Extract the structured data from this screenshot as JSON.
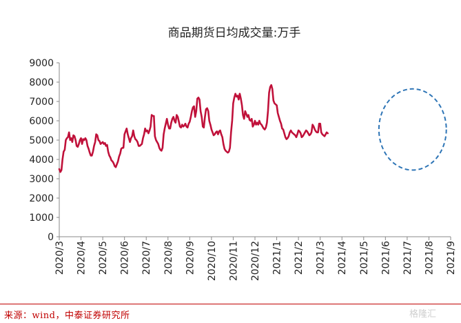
{
  "chart_data": {
    "type": "line",
    "title": "商品期货日均成交量:万手",
    "xlabel": "",
    "ylabel": "",
    "ylim": [
      0,
      9000
    ],
    "yticks": [
      0,
      1000,
      2000,
      3000,
      4000,
      5000,
      6000,
      7000,
      8000,
      9000
    ],
    "xlim": [
      0,
      18
    ],
    "xtick_labels": [
      "2020/3",
      "2020/4",
      "2020/5",
      "2020/6",
      "2020/7",
      "2020/8",
      "2020/9",
      "2020/10",
      "2020/11",
      "2020/12",
      "2021/1",
      "2021/2",
      "2021/3",
      "2021/4",
      "2021/5",
      "2021/6",
      "2021/7",
      "2021/8",
      "2021/9"
    ],
    "grid": false,
    "legend": "none",
    "line_color": "#c0113a",
    "annotation": {
      "type": "dashed-ellipse",
      "color": "#2e75b6",
      "x_center": 16.25,
      "y_center": 5550,
      "x_radius": 1.55,
      "y_radius": 2100
    },
    "series": [
      {
        "name": "商品期货日均成交量",
        "points": [
          [
            0.0,
            3500
          ],
          [
            0.05,
            3350
          ],
          [
            0.1,
            3450
          ],
          [
            0.15,
            4000
          ],
          [
            0.2,
            4400
          ],
          [
            0.25,
            4500
          ],
          [
            0.3,
            5000
          ],
          [
            0.35,
            5100
          ],
          [
            0.4,
            5150
          ],
          [
            0.45,
            5400
          ],
          [
            0.5,
            5000
          ],
          [
            0.55,
            5100
          ],
          [
            0.6,
            4900
          ],
          [
            0.65,
            5250
          ],
          [
            0.7,
            5200
          ],
          [
            0.75,
            5000
          ],
          [
            0.8,
            4700
          ],
          [
            0.85,
            4650
          ],
          [
            0.9,
            4800
          ],
          [
            0.95,
            5000
          ],
          [
            1.0,
            5100
          ],
          [
            1.05,
            4800
          ],
          [
            1.1,
            5050
          ],
          [
            1.15,
            5000
          ],
          [
            1.2,
            5100
          ],
          [
            1.25,
            5000
          ],
          [
            1.3,
            4700
          ],
          [
            1.35,
            4550
          ],
          [
            1.4,
            4350
          ],
          [
            1.45,
            4200
          ],
          [
            1.5,
            4200
          ],
          [
            1.55,
            4400
          ],
          [
            1.6,
            4700
          ],
          [
            1.65,
            4900
          ],
          [
            1.7,
            5300
          ],
          [
            1.75,
            5250
          ],
          [
            1.8,
            5000
          ],
          [
            1.85,
            4950
          ],
          [
            1.9,
            4800
          ],
          [
            1.95,
            4850
          ],
          [
            2.0,
            4900
          ],
          [
            2.05,
            4800
          ],
          [
            2.1,
            4850
          ],
          [
            2.15,
            4700
          ],
          [
            2.2,
            4750
          ],
          [
            2.25,
            4400
          ],
          [
            2.3,
            4200
          ],
          [
            2.35,
            4100
          ],
          [
            2.4,
            3950
          ],
          [
            2.45,
            3900
          ],
          [
            2.5,
            3800
          ],
          [
            2.55,
            3650
          ],
          [
            2.6,
            3600
          ],
          [
            2.65,
            3750
          ],
          [
            2.7,
            3900
          ],
          [
            2.75,
            4150
          ],
          [
            2.8,
            4300
          ],
          [
            2.85,
            4550
          ],
          [
            2.9,
            4600
          ],
          [
            2.95,
            4600
          ],
          [
            3.0,
            5300
          ],
          [
            3.05,
            5450
          ],
          [
            3.1,
            5600
          ],
          [
            3.15,
            5300
          ],
          [
            3.2,
            5100
          ],
          [
            3.25,
            4900
          ],
          [
            3.3,
            5100
          ],
          [
            3.35,
            5200
          ],
          [
            3.4,
            5500
          ],
          [
            3.45,
            5200
          ],
          [
            3.5,
            5050
          ],
          [
            3.55,
            5000
          ],
          [
            3.6,
            4900
          ],
          [
            3.65,
            4700
          ],
          [
            3.7,
            4700
          ],
          [
            3.75,
            4750
          ],
          [
            3.8,
            4800
          ],
          [
            3.85,
            5100
          ],
          [
            3.9,
            5300
          ],
          [
            3.95,
            5600
          ],
          [
            4.0,
            5450
          ],
          [
            4.05,
            5500
          ],
          [
            4.1,
            5350
          ],
          [
            4.15,
            5500
          ],
          [
            4.2,
            5700
          ],
          [
            4.25,
            6300
          ],
          [
            4.3,
            6250
          ],
          [
            4.35,
            6250
          ],
          [
            4.4,
            5200
          ],
          [
            4.45,
            5000
          ],
          [
            4.5,
            4900
          ],
          [
            4.55,
            4800
          ],
          [
            4.6,
            4600
          ],
          [
            4.65,
            4500
          ],
          [
            4.7,
            4450
          ],
          [
            4.75,
            4600
          ],
          [
            4.8,
            5300
          ],
          [
            4.85,
            5600
          ],
          [
            4.9,
            5850
          ],
          [
            4.95,
            6100
          ],
          [
            5.0,
            5800
          ],
          [
            5.05,
            5600
          ],
          [
            5.1,
            5600
          ],
          [
            5.15,
            5900
          ],
          [
            5.2,
            6100
          ],
          [
            5.25,
            6200
          ],
          [
            5.3,
            6000
          ],
          [
            5.35,
            5900
          ],
          [
            5.4,
            6300
          ],
          [
            5.45,
            6200
          ],
          [
            5.5,
            5950
          ],
          [
            5.55,
            5700
          ],
          [
            5.6,
            5650
          ],
          [
            5.65,
            5800
          ],
          [
            5.7,
            5700
          ],
          [
            5.75,
            5750
          ],
          [
            5.8,
            5850
          ],
          [
            5.85,
            5700
          ],
          [
            5.9,
            5650
          ],
          [
            5.95,
            5850
          ],
          [
            6.0,
            5950
          ],
          [
            6.05,
            6200
          ],
          [
            6.1,
            6500
          ],
          [
            6.15,
            6700
          ],
          [
            6.2,
            6750
          ],
          [
            6.25,
            6200
          ],
          [
            6.3,
            6500
          ],
          [
            6.35,
            7150
          ],
          [
            6.4,
            7200
          ],
          [
            6.45,
            7100
          ],
          [
            6.5,
            6500
          ],
          [
            6.55,
            6200
          ],
          [
            6.6,
            5700
          ],
          [
            6.65,
            5650
          ],
          [
            6.7,
            6200
          ],
          [
            6.75,
            6600
          ],
          [
            6.8,
            6650
          ],
          [
            6.85,
            6500
          ],
          [
            6.9,
            6000
          ],
          [
            6.95,
            5800
          ],
          [
            7.0,
            5550
          ],
          [
            7.05,
            5400
          ],
          [
            7.1,
            5250
          ],
          [
            7.15,
            5300
          ],
          [
            7.2,
            5400
          ],
          [
            7.25,
            5450
          ],
          [
            7.3,
            5300
          ],
          [
            7.35,
            5450
          ],
          [
            7.4,
            5500
          ],
          [
            7.45,
            5300
          ],
          [
            7.5,
            5150
          ],
          [
            7.55,
            4800
          ],
          [
            7.6,
            4550
          ],
          [
            7.65,
            4450
          ],
          [
            7.7,
            4400
          ],
          [
            7.75,
            4350
          ],
          [
            7.8,
            4400
          ],
          [
            7.85,
            4600
          ],
          [
            7.9,
            5400
          ],
          [
            7.95,
            6000
          ],
          [
            8.0,
            6900
          ],
          [
            8.05,
            7200
          ],
          [
            8.1,
            7400
          ],
          [
            8.15,
            7250
          ],
          [
            8.2,
            7300
          ],
          [
            8.25,
            7100
          ],
          [
            8.3,
            7400
          ],
          [
            8.35,
            7150
          ],
          [
            8.4,
            6800
          ],
          [
            8.45,
            6300
          ],
          [
            8.5,
            6100
          ],
          [
            8.55,
            6500
          ],
          [
            8.6,
            6350
          ],
          [
            8.65,
            6200
          ],
          [
            8.7,
            6300
          ],
          [
            8.75,
            6050
          ],
          [
            8.8,
            6000
          ],
          [
            8.85,
            6100
          ],
          [
            8.9,
            5700
          ],
          [
            8.95,
            5800
          ],
          [
            9.0,
            6000
          ],
          [
            9.05,
            5800
          ],
          [
            9.1,
            5900
          ],
          [
            9.15,
            5800
          ],
          [
            9.2,
            6000
          ],
          [
            9.25,
            5850
          ],
          [
            9.3,
            5800
          ],
          [
            9.35,
            5700
          ],
          [
            9.4,
            5600
          ],
          [
            9.45,
            5550
          ],
          [
            9.5,
            5650
          ],
          [
            9.55,
            5900
          ],
          [
            9.6,
            6500
          ],
          [
            9.65,
            7450
          ],
          [
            9.7,
            7750
          ],
          [
            9.75,
            7850
          ],
          [
            9.8,
            7650
          ],
          [
            9.85,
            7050
          ],
          [
            9.9,
            6900
          ],
          [
            9.95,
            6850
          ],
          [
            10.0,
            6800
          ],
          [
            10.05,
            6400
          ],
          [
            10.1,
            6200
          ],
          [
            10.15,
            6000
          ],
          [
            10.2,
            5850
          ],
          [
            10.25,
            5600
          ],
          [
            10.3,
            5550
          ],
          [
            10.35,
            5350
          ],
          [
            10.4,
            5150
          ],
          [
            10.45,
            5050
          ],
          [
            10.5,
            5100
          ],
          [
            10.55,
            5200
          ],
          [
            10.6,
            5400
          ],
          [
            10.65,
            5500
          ],
          [
            10.7,
            5400
          ],
          [
            10.75,
            5350
          ],
          [
            10.8,
            5300
          ],
          [
            10.85,
            5250
          ],
          [
            10.9,
            5150
          ],
          [
            10.95,
            5300
          ],
          [
            11.0,
            5500
          ],
          [
            11.05,
            5450
          ],
          [
            11.1,
            5350
          ],
          [
            11.15,
            5150
          ],
          [
            11.2,
            5200
          ],
          [
            11.25,
            5300
          ],
          [
            11.3,
            5400
          ],
          [
            11.35,
            5500
          ],
          [
            11.4,
            5450
          ],
          [
            11.45,
            5350
          ],
          [
            11.5,
            5250
          ],
          [
            11.55,
            5300
          ],
          [
            11.6,
            5400
          ],
          [
            11.65,
            5800
          ],
          [
            11.7,
            5700
          ],
          [
            11.75,
            5550
          ],
          [
            11.8,
            5450
          ],
          [
            11.85,
            5400
          ],
          [
            11.9,
            5400
          ],
          [
            11.95,
            5850
          ],
          [
            12.0,
            5850
          ],
          [
            12.05,
            5400
          ],
          [
            12.1,
            5300
          ],
          [
            12.15,
            5250
          ],
          [
            12.2,
            5200
          ],
          [
            12.25,
            5300
          ],
          [
            12.3,
            5400
          ],
          [
            12.35,
            5350
          ]
        ]
      }
    ]
  },
  "source": "来源：wind，中泰证券研究所",
  "watermark": "格隆汇"
}
